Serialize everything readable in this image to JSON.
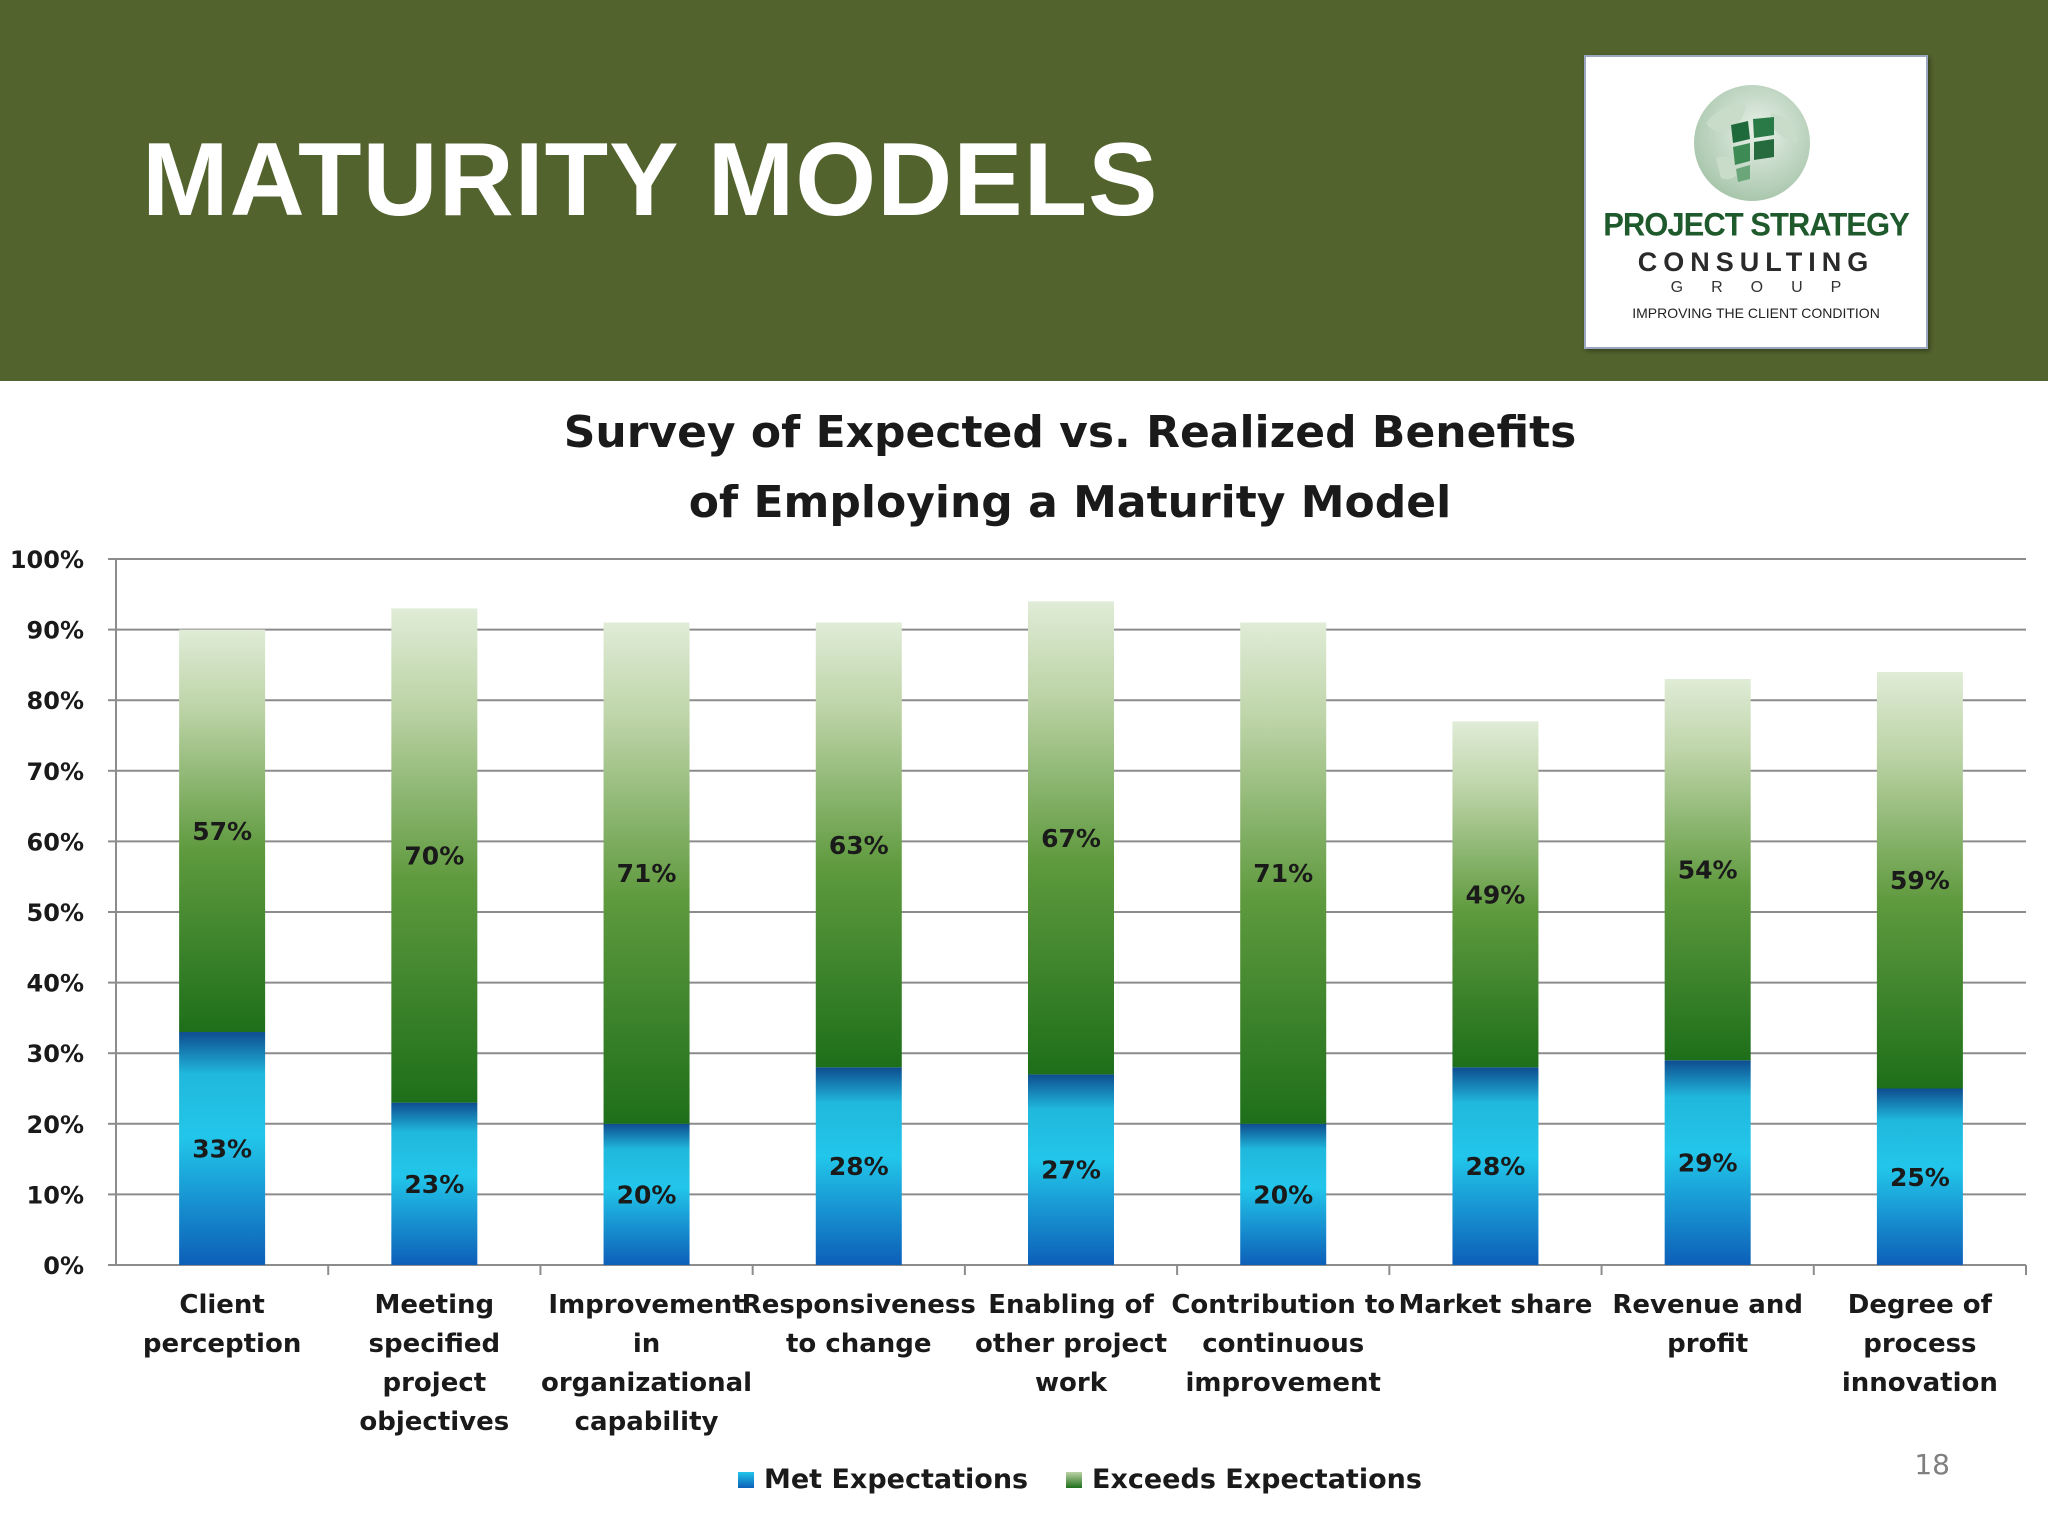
{
  "slide": {
    "title": "MATURITY MODELS",
    "page_number": "18"
  },
  "logo": {
    "line1": "PROJECT STRATEGY",
    "line2": "CONSULTING",
    "line3": "GROUP",
    "tagline": "IMPROVING THE CLIENT CONDITION"
  },
  "colors": {
    "header_bg": "#52632d",
    "met": "#1ba7e0",
    "exceeds": "#5a9a3a"
  },
  "chart_data": {
    "type": "bar",
    "stacked": true,
    "title_lines": [
      "Survey of Expected vs. Realized Benefits",
      "of Employing a Maturity Model"
    ],
    "categories": [
      [
        "Client",
        "perception"
      ],
      [
        "Meeting",
        "specified",
        "project",
        "objectives"
      ],
      [
        "Improvement",
        "in",
        "organizational",
        "capability"
      ],
      [
        "Responsiveness",
        "to change"
      ],
      [
        "Enabling of",
        "other project",
        "work"
      ],
      [
        "Contribution to",
        "continuous",
        "improvement"
      ],
      [
        "Market share"
      ],
      [
        "Revenue and",
        "profit"
      ],
      [
        "Degree of",
        "process",
        "innovation"
      ]
    ],
    "series": [
      {
        "name": "Met Expectations",
        "values": [
          33,
          23,
          20,
          28,
          27,
          20,
          28,
          29,
          25
        ],
        "labels": [
          "33%",
          "23%",
          "20%",
          "28%",
          "27%",
          "20%",
          "28%",
          "29%",
          "25%"
        ]
      },
      {
        "name": "Exceeds Expectations",
        "values": [
          57,
          70,
          71,
          63,
          67,
          71,
          49,
          54,
          59
        ],
        "labels": [
          "57%",
          "70%",
          "71%",
          "63%",
          "67%",
          "71%",
          "49%",
          "54%",
          "59%"
        ]
      }
    ],
    "ylim": [
      0,
      100
    ],
    "yticks": [
      "0%",
      "10%",
      "20%",
      "30%",
      "40%",
      "50%",
      "60%",
      "70%",
      "80%",
      "90%",
      "100%"
    ],
    "grid": true,
    "legend_position": "bottom"
  }
}
